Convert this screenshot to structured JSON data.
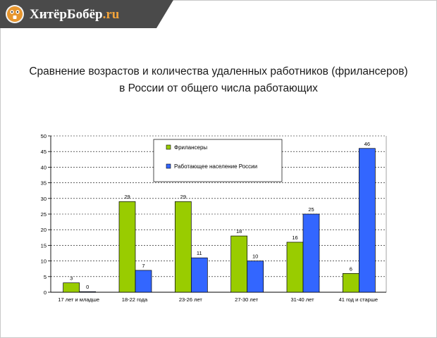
{
  "site": {
    "name": "ХитёрБобёр",
    "tld": ".ru",
    "icon": "beaver-logo-icon"
  },
  "colors": {
    "freelancers": "#99cc00",
    "workforce": "#3366ff",
    "logo_bg": "#4a4a4a",
    "logo_tld": "#f2a33a"
  },
  "chart_data": {
    "type": "bar",
    "title_lines": [
      "Сравнение возрастов и количества удаленных работников (фрилансеров)",
      "в России от общего числа работающих"
    ],
    "xlabel": "",
    "ylabel": "",
    "ylim": [
      0,
      50
    ],
    "yticks": [
      0,
      5,
      10,
      15,
      20,
      25,
      30,
      35,
      40,
      45,
      50
    ],
    "grid": true,
    "legend_position": "top-center",
    "categories": [
      "17 лет и младше",
      "18-22 года",
      "23-26 лет",
      "27-30 лет",
      "31-40 лет",
      "41 год и старше"
    ],
    "series": [
      {
        "name": "Фрилансеры",
        "values": [
          3,
          29,
          29,
          18,
          16,
          6
        ],
        "labels": [
          "3",
          "29",
          "29",
          "18",
          "16",
          "6"
        ]
      },
      {
        "name": "Работающее население России",
        "values": [
          0,
          7,
          11,
          10,
          25,
          46
        ],
        "labels": [
          "0",
          "7",
          "11",
          "10",
          "25",
          "46"
        ]
      }
    ]
  }
}
